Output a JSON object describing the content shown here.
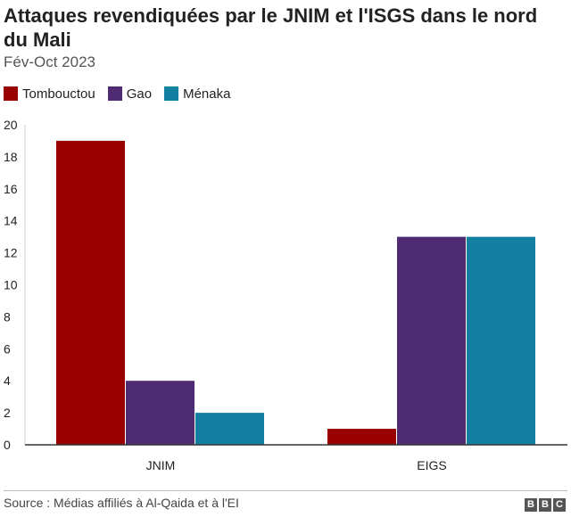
{
  "title": "Attaques revendiquées par le JNIM et l'ISGS dans le nord du Mali",
  "subtitle": "Fév-Oct 2023",
  "source": "Source : Médias affiliés à Al-Qaida et à l'EI",
  "logo": [
    "B",
    "B",
    "C"
  ],
  "colors": {
    "Tombouctou": "#990000",
    "Gao": "#4f2b73",
    "Ménaka": "#1380a1"
  },
  "chart_data": {
    "type": "bar",
    "title": "Attaques revendiquées par le JNIM et l'ISGS dans le nord du Mali",
    "subtitle": "Fév-Oct 2023",
    "categories": [
      "JNIM",
      "EIGS"
    ],
    "series": [
      {
        "name": "Tombouctou",
        "values": [
          19,
          1
        ]
      },
      {
        "name": "Gao",
        "values": [
          4,
          13
        ]
      },
      {
        "name": "Ménaka",
        "values": [
          2,
          13
        ]
      }
    ],
    "xlabel": "",
    "ylabel": "",
    "ylim": [
      0,
      20
    ],
    "yticks": [
      0,
      2,
      4,
      6,
      8,
      10,
      12,
      14,
      16,
      18,
      20
    ],
    "legend": "top-left",
    "grid": false
  }
}
